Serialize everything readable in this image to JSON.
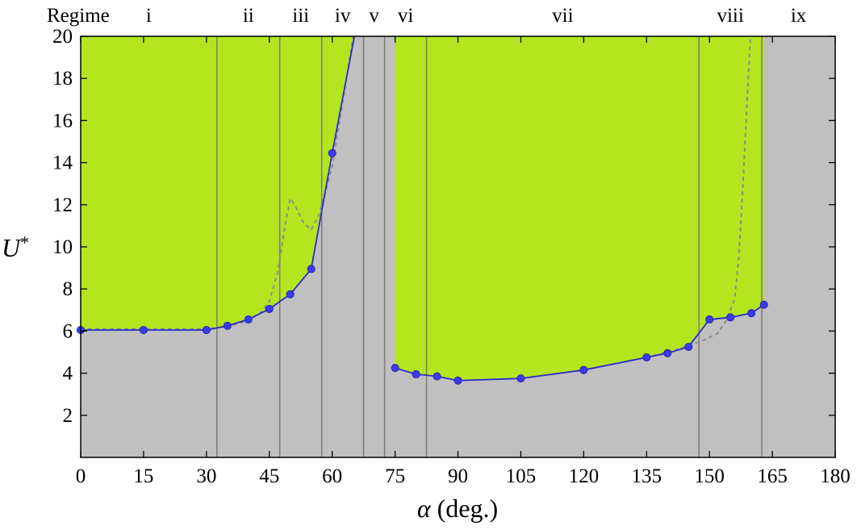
{
  "chart_data": {
    "type": "line",
    "xlabel": "α (deg.)",
    "xlabel_symbol": "α",
    "xlabel_unit": "(deg.)",
    "ylabel": "U*",
    "ylabel_symbol": "U",
    "ylabel_sup": "*",
    "xlim": [
      0,
      180
    ],
    "ylim": [
      0,
      20
    ],
    "xticks": [
      0,
      15,
      30,
      45,
      60,
      75,
      90,
      105,
      120,
      135,
      150,
      165,
      180
    ],
    "yticks": [
      2,
      4,
      6,
      8,
      10,
      12,
      14,
      16,
      18,
      20
    ],
    "regime_header": "Regime",
    "regimes": [
      {
        "label": "i",
        "x0": 0,
        "x1": 32.5
      },
      {
        "label": "ii",
        "x0": 32.5,
        "x1": 47.5
      },
      {
        "label": "iii",
        "x0": 47.5,
        "x1": 57.5
      },
      {
        "label": "iv",
        "x0": 57.5,
        "x1": 67.5
      },
      {
        "label": "v",
        "x0": 67.5,
        "x1": 72.5
      },
      {
        "label": "vi",
        "x0": 72.5,
        "x1": 82.5
      },
      {
        "label": "vii",
        "x0": 82.5,
        "x1": 147.5
      },
      {
        "label": "viii",
        "x0": 147.5,
        "x1": 162.5
      },
      {
        "label": "ix",
        "x0": 162.5,
        "x1": 180
      }
    ],
    "boundaries": [
      32.5,
      47.5,
      57.5,
      67.5,
      72.5,
      82.5,
      147.5,
      162.5
    ],
    "colors": {
      "background": "#c0c0c0",
      "region": "#b3e61f",
      "series": "#2a2acc",
      "marker": "#3a3af0",
      "dashed": "#8c8c8c",
      "boundary": "#7a7a7a"
    },
    "series": [
      {
        "x": [
          0,
          15,
          30,
          35,
          40,
          45,
          50,
          55,
          60,
          65.3
        ],
        "y": [
          6.05,
          6.05,
          6.05,
          6.25,
          6.55,
          7.05,
          7.75,
          8.95,
          14.45,
          20
        ],
        "markers": [
          true,
          true,
          true,
          true,
          true,
          true,
          true,
          true,
          true,
          false
        ]
      },
      {
        "x": [
          75,
          80,
          85,
          90,
          105,
          120,
          135,
          140,
          145,
          150,
          155,
          160,
          163
        ],
        "y": [
          4.25,
          3.95,
          3.85,
          3.65,
          3.75,
          4.15,
          4.75,
          4.95,
          5.25,
          6.55,
          6.65,
          6.85,
          7.25
        ],
        "markers": [
          true,
          true,
          true,
          true,
          true,
          true,
          true,
          true,
          true,
          true,
          true,
          true,
          true
        ]
      }
    ],
    "dashed_series": [
      {
        "x": [
          0,
          20,
          30,
          35,
          40,
          43,
          45,
          47,
          49,
          50,
          51,
          53,
          55,
          57,
          60,
          63,
          65
        ],
        "y": [
          6.1,
          6.1,
          6.1,
          6.2,
          6.5,
          6.9,
          7.4,
          8.8,
          11.3,
          12.3,
          12.0,
          11.2,
          10.8,
          11.6,
          13.8,
          17.5,
          20
        ]
      },
      {
        "x": [
          135,
          140,
          145,
          149,
          152,
          154,
          156,
          157,
          158,
          159,
          159.8
        ],
        "y": [
          4.75,
          5.0,
          5.3,
          5.6,
          5.9,
          6.5,
          7.5,
          9.5,
          13,
          17,
          20
        ]
      }
    ]
  }
}
